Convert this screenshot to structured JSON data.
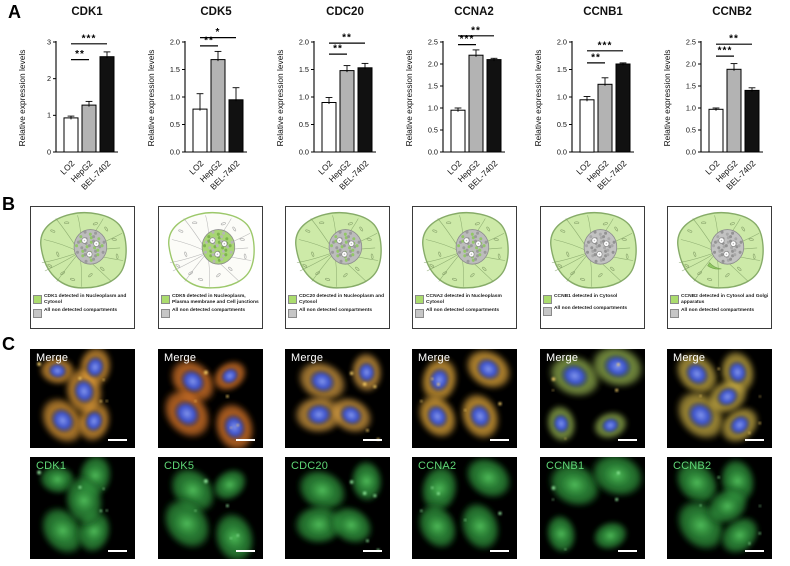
{
  "panels": {
    "a_label": "A",
    "b_label": "B",
    "c_label": "C"
  },
  "colors": {
    "bar_fills": [
      "#ffffff",
      "#b3b3b3",
      "#111111"
    ],
    "bar_stroke": "#000000",
    "axis_color": "#000000",
    "legend_green": "#abdc6e",
    "legend_gray": "#c6c6c6",
    "cell_cytosol_green": "#cdeaa8",
    "cell_cytosol_white": "#fcfcf8",
    "merge_label_color": "#ffffff",
    "protein_label_color": "#5fd676",
    "micro_background": "#000000",
    "scale_bar_color": "#ffffff"
  },
  "chart_data": [
    {
      "type": "bar",
      "title": "CDK1",
      "ylabel": "Relative expression levels",
      "categories": [
        "LO2",
        "HepG2",
        "BEL-7402"
      ],
      "values": [
        0.93,
        1.28,
        2.6
      ],
      "errors": [
        0.05,
        0.1,
        0.13
      ],
      "ymax": 3,
      "yticks": [
        "0",
        "1",
        "2",
        "3"
      ],
      "sig": [
        {
          "from": 0,
          "to": 1,
          "stars": "**",
          "y": 2.52
        },
        {
          "from": 0,
          "to": 2,
          "stars": "***",
          "y": 2.95
        }
      ]
    },
    {
      "type": "bar",
      "title": "CDK5",
      "ylabel": "Relative expression levels",
      "categories": [
        "LO2",
        "HepG2",
        "BEL-7402"
      ],
      "values": [
        0.78,
        1.68,
        0.95
      ],
      "errors": [
        0.28,
        0.15,
        0.22
      ],
      "ymax": 2,
      "yticks": [
        "0.0",
        "0.5",
        "1.0",
        "1.5",
        "2.0"
      ],
      "sig": [
        {
          "from": 0,
          "to": 1,
          "stars": "**",
          "y": 1.93
        },
        {
          "from": 0,
          "to": 2,
          "stars": "*",
          "y": 2.08
        }
      ]
    },
    {
      "type": "bar",
      "title": "CDC20",
      "ylabel": "Relative expression levels",
      "categories": [
        "LO2",
        "HepG2",
        "BEL-7402"
      ],
      "values": [
        0.9,
        1.48,
        1.53
      ],
      "errors": [
        0.09,
        0.09,
        0.08
      ],
      "ymax": 2,
      "yticks": [
        "0.0",
        "0.5",
        "1.0",
        "1.5",
        "2.0"
      ],
      "sig": [
        {
          "from": 0,
          "to": 1,
          "stars": "**",
          "y": 1.78
        },
        {
          "from": 0,
          "to": 2,
          "stars": "**",
          "y": 1.98
        }
      ]
    },
    {
      "type": "bar",
      "title": "CCNA2",
      "ylabel": "Relative expression levels",
      "categories": [
        "LO2",
        "HepG2",
        "BEL-7402"
      ],
      "values": [
        0.95,
        2.2,
        2.1
      ],
      "errors": [
        0.05,
        0.12,
        0.03
      ],
      "ymax": 2.5,
      "yticks": [
        "0.0",
        "0.5",
        "1.0",
        "1.5",
        "2.0",
        "2.5"
      ],
      "sig": [
        {
          "from": 0,
          "to": 1,
          "stars": "***",
          "y": 2.44
        },
        {
          "from": 0,
          "to": 2,
          "stars": "**",
          "y": 2.64
        }
      ]
    },
    {
      "type": "bar",
      "title": "CCNB1",
      "ylabel": "Relative expression levels",
      "categories": [
        "LO2",
        "HepG2",
        "BEL-7402"
      ],
      "values": [
        0.95,
        1.23,
        1.6
      ],
      "errors": [
        0.06,
        0.12,
        0.02
      ],
      "ymax": 2,
      "yticks": [
        "0.0",
        "0.5",
        "1.0",
        "1.5",
        "2.0"
      ],
      "sig": [
        {
          "from": 0,
          "to": 1,
          "stars": "**",
          "y": 1.62
        },
        {
          "from": 0,
          "to": 2,
          "stars": "***",
          "y": 1.84
        }
      ]
    },
    {
      "type": "bar",
      "title": "CCNB2",
      "ylabel": "Relative expression levels",
      "categories": [
        "LO2",
        "HepG2",
        "BEL-7402"
      ],
      "values": [
        0.97,
        1.88,
        1.4
      ],
      "errors": [
        0.03,
        0.13,
        0.06
      ],
      "ymax": 2.5,
      "yticks": [
        "0.0",
        "0.5",
        "1.0",
        "1.5",
        "2.0",
        "2.5"
      ],
      "sig": [
        {
          "from": 0,
          "to": 1,
          "stars": "***",
          "y": 2.18
        },
        {
          "from": 0,
          "to": 2,
          "stars": "**",
          "y": 2.45
        }
      ]
    }
  ],
  "panel_b": {
    "cells": [
      {
        "legend_detected": "CDK1 detected in Nucleoplasm and Cytosol",
        "legend_other": "All non detected compartments",
        "cyto": "green",
        "nucleus": "mixed"
      },
      {
        "legend_detected": "CDK5 detected in Nucleoplasm, Plasma membrane and Cell junctions",
        "legend_other": "All non detected compartments",
        "cyto": "white",
        "nucleus": "green"
      },
      {
        "legend_detected": "CDC20 detected in Nucleoplasm and Cytosol",
        "legend_other": "All non detected compartments",
        "cyto": "green",
        "nucleus": "mixed"
      },
      {
        "legend_detected": "CCNA2 detected in Nucleoplasm Cytosol",
        "legend_other": "All non detected compartments",
        "cyto": "green",
        "nucleus": "mixed"
      },
      {
        "legend_detected": "CCNB1 detected in Cytosol",
        "legend_other": "All non detected compartments",
        "cyto": "green",
        "nucleus": "gray"
      },
      {
        "legend_detected": "CCNB2 detected in Cytosol and Golgi apparatus",
        "legend_other": "All non detected compartments",
        "cyto": "green",
        "nucleus": "gray"
      }
    ]
  },
  "panel_c": {
    "merge_label": "Merge",
    "columns": [
      {
        "protein_label": "CDK1"
      },
      {
        "protein_label": "CDK5"
      },
      {
        "protein_label": "CDC20"
      },
      {
        "protein_label": "CCNA2"
      },
      {
        "protein_label": "CCNB1"
      },
      {
        "protein_label": "CCNB2"
      }
    ]
  }
}
